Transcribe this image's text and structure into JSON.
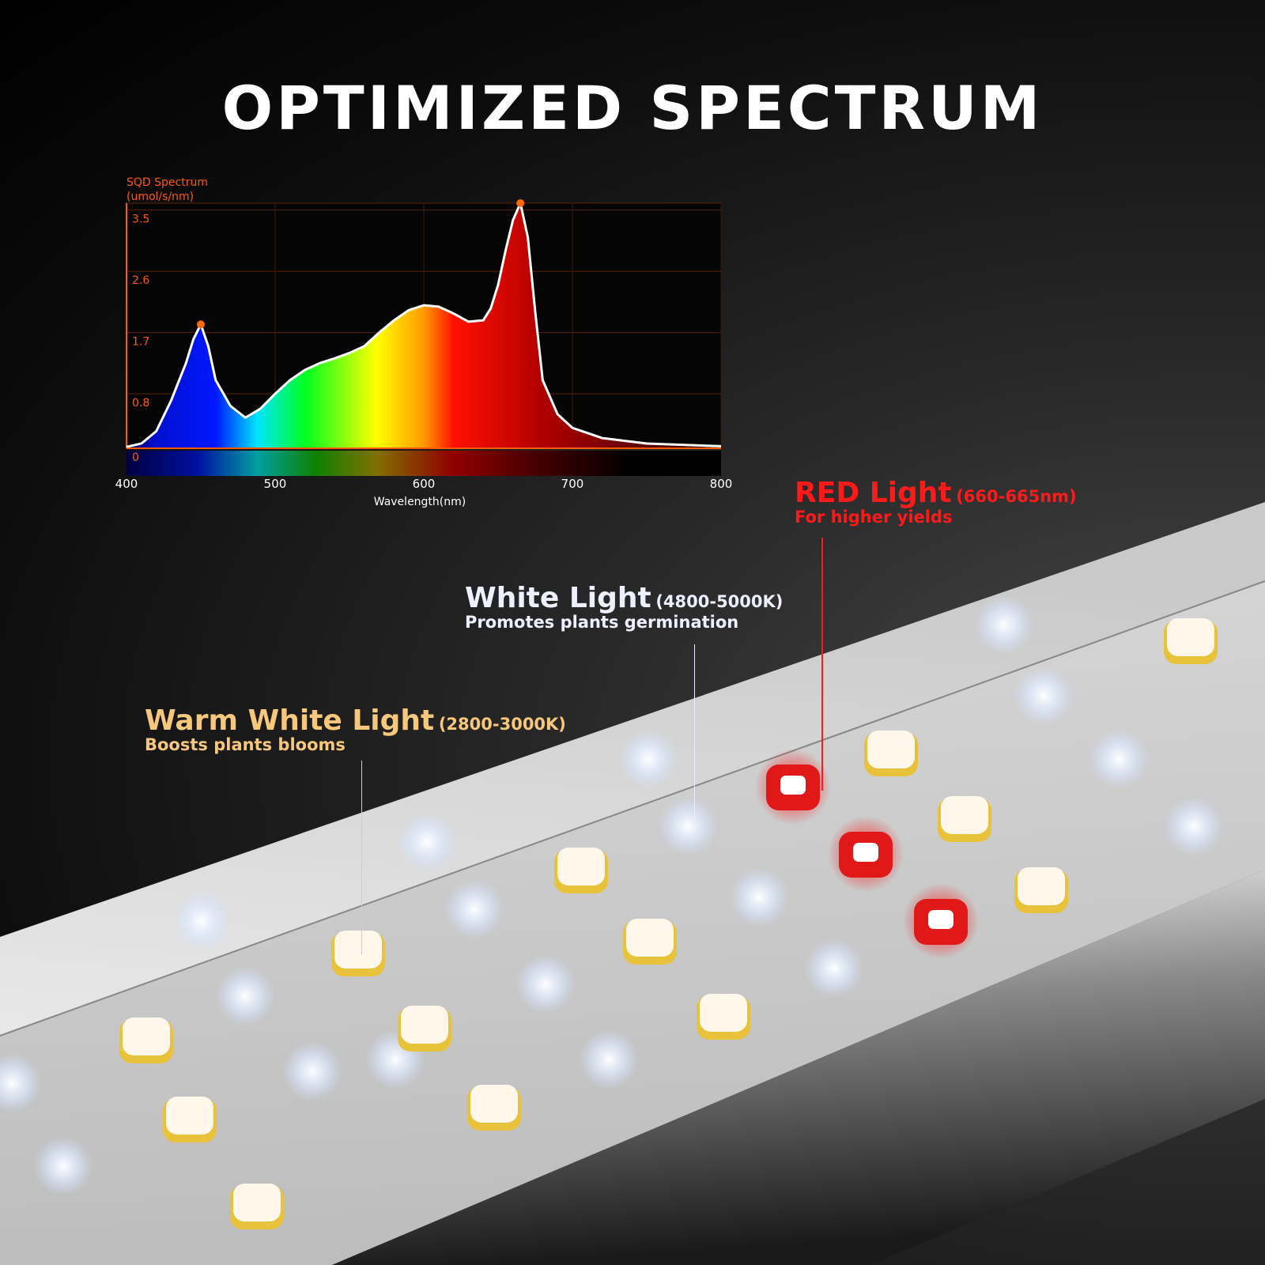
{
  "title": "OPTIMIZED SPECTRUM",
  "annotations": {
    "red": {
      "heading": "RED Light",
      "range": "(660-665nm)",
      "subtitle": "For higher yields",
      "color": "#ff1a1a"
    },
    "white": {
      "heading": "White Light",
      "range": "(4800-5000K)",
      "subtitle": "Promotes plants germination",
      "color": "#eef0ff"
    },
    "warm": {
      "heading": "Warm White Light",
      "range": "(2800-3000K)",
      "subtitle": "Boosts plants blooms",
      "color": "#f7c77c"
    }
  },
  "chart_data": {
    "type": "area",
    "title": "",
    "ylabel_line1": "SQD Spectrum",
    "ylabel_line2": "(umol/s/nm)",
    "xlabel": "Wavelength(nm)",
    "xlim": [
      400,
      800
    ],
    "ylim": [
      0,
      3.6
    ],
    "xticks": [
      "400",
      "500",
      "600",
      "700",
      "800"
    ],
    "yticks": [
      "0",
      "0.8",
      "1.7",
      "2.6",
      "3.5"
    ],
    "grid": true,
    "axis_color": "#ff5a00",
    "x": [
      400,
      410,
      420,
      430,
      440,
      445,
      450,
      455,
      460,
      470,
      480,
      490,
      500,
      510,
      520,
      530,
      540,
      550,
      560,
      570,
      580,
      590,
      600,
      610,
      620,
      630,
      640,
      645,
      650,
      655,
      660,
      665,
      670,
      675,
      680,
      690,
      700,
      720,
      750,
      800
    ],
    "values": [
      0.02,
      0.07,
      0.25,
      0.7,
      1.25,
      1.6,
      1.82,
      1.5,
      1.0,
      0.62,
      0.45,
      0.58,
      0.8,
      1.0,
      1.15,
      1.25,
      1.32,
      1.4,
      1.5,
      1.7,
      1.88,
      2.03,
      2.1,
      2.08,
      1.98,
      1.86,
      1.88,
      2.05,
      2.4,
      2.9,
      3.35,
      3.6,
      3.1,
      2.0,
      1.0,
      0.5,
      0.3,
      0.15,
      0.07,
      0.03
    ],
    "peaks": [
      {
        "x": 450,
        "y": 1.82
      },
      {
        "x": 665,
        "y": 3.6
      }
    ]
  }
}
